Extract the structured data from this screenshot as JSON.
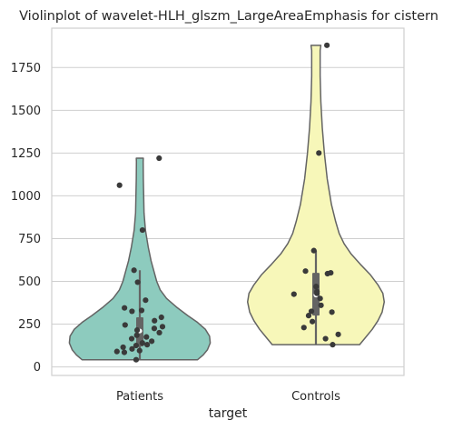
{
  "chart_data": {
    "type": "violin",
    "title": "Violinplot of wavelet-HLH_glszm_LargeAreaEmphasis for cistern",
    "xlabel": "target",
    "ylabel": "",
    "categories": [
      "Patients",
      "Controls"
    ],
    "ylim": [
      -50,
      1980
    ],
    "yticks": [
      0,
      250,
      500,
      750,
      1000,
      1250,
      1500,
      1750
    ],
    "grid": true,
    "colors": {
      "Patients": "#8dcbbe",
      "Controls": "#f7f7b9",
      "outline": "#646464",
      "points": "#3a3a3a",
      "box": "#646464",
      "grid": "#cfcfcf",
      "frame": "#cfcfcf"
    },
    "violins": [
      {
        "category": "Patients",
        "min": 42,
        "max": 1220,
        "quartiles": [
          120,
          210,
          290
        ],
        "whiskers": [
          42,
          565
        ],
        "density_halfwidth": [
          [
            42,
            0.82
          ],
          [
            70,
            0.9
          ],
          [
            100,
            0.96
          ],
          [
            140,
            1.0
          ],
          [
            180,
            0.99
          ],
          [
            220,
            0.93
          ],
          [
            260,
            0.82
          ],
          [
            300,
            0.68
          ],
          [
            350,
            0.52
          ],
          [
            400,
            0.38
          ],
          [
            450,
            0.29
          ],
          [
            500,
            0.24
          ],
          [
            560,
            0.2
          ],
          [
            620,
            0.16
          ],
          [
            700,
            0.12
          ],
          [
            800,
            0.08
          ],
          [
            900,
            0.06
          ],
          [
            1000,
            0.055
          ],
          [
            1100,
            0.05
          ],
          [
            1200,
            0.048
          ],
          [
            1220,
            0.05
          ]
        ],
        "points": [
          1220,
          1062,
          800,
          565,
          495,
          390,
          345,
          325,
          330,
          290,
          270,
          245,
          235,
          225,
          215,
          200,
          185,
          175,
          165,
          150,
          140,
          130,
          125,
          115,
          105,
          95,
          90,
          85,
          42
        ]
      },
      {
        "category": "Controls",
        "min": 130,
        "max": 1880,
        "quartiles": [
          300,
          420,
          550
        ],
        "whiskers": [
          130,
          680
        ],
        "density_halfwidth": [
          [
            130,
            0.62
          ],
          [
            170,
            0.7
          ],
          [
            220,
            0.8
          ],
          [
            270,
            0.88
          ],
          [
            320,
            0.94
          ],
          [
            380,
            0.97
          ],
          [
            430,
            0.95
          ],
          [
            480,
            0.88
          ],
          [
            540,
            0.77
          ],
          [
            600,
            0.63
          ],
          [
            660,
            0.5
          ],
          [
            720,
            0.4
          ],
          [
            780,
            0.33
          ],
          [
            850,
            0.28
          ],
          [
            950,
            0.22
          ],
          [
            1100,
            0.16
          ],
          [
            1250,
            0.12
          ],
          [
            1400,
            0.09
          ],
          [
            1550,
            0.07
          ],
          [
            1700,
            0.06
          ],
          [
            1850,
            0.06
          ],
          [
            1880,
            0.07
          ]
        ],
        "points": [
          1880,
          1250,
          680,
          560,
          550,
          545,
          470,
          440,
          430,
          425,
          400,
          360,
          325,
          320,
          300,
          265,
          230,
          190,
          165,
          130
        ]
      }
    ]
  }
}
